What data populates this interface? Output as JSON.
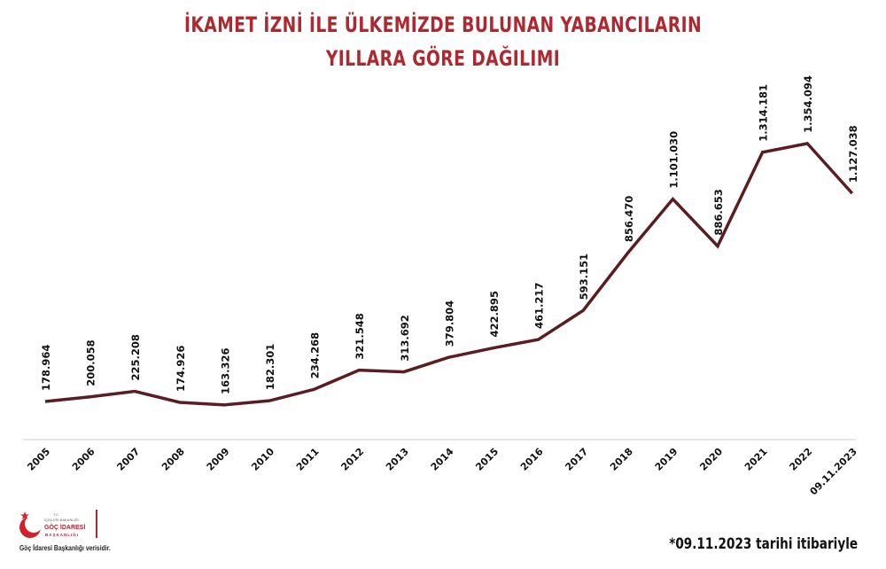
{
  "title": {
    "line1": "İKAMET İZNİ İLE ÜLKEMİZDE BULUNAN YABANCILARIN",
    "line2": "YILLARA GÖRE DAĞILIMI"
  },
  "colors": {
    "title": "#b0282f",
    "line": "#5a1e22",
    "axis": "#e6e6e6"
  },
  "footnote": "*09.11.2023 tarihi itibariyle",
  "logo": {
    "org_line1": "T.C.",
    "org_line2": "İÇİŞLERİ BAKANLIĞI",
    "org_line3": "GÖÇ İDARESİ",
    "org_line4": "BAŞKANLIĞI",
    "source": "Göç İdaresi Başkanlığı verisidir."
  },
  "chart_data": {
    "type": "line",
    "title": "İKAMET İZNİ İLE ÜLKEMİZDE BULUNAN YABANCILARIN YILLARA GÖRE DAĞILIMI",
    "xlabel": "",
    "ylabel": "",
    "grid": false,
    "legend": "none",
    "categories": [
      "2005",
      "2006",
      "2007",
      "2008",
      "2009",
      "2010",
      "2011",
      "2012",
      "2013",
      "2014",
      "2015",
      "2016",
      "2017",
      "2018",
      "2019",
      "2020",
      "2021",
      "2022",
      "09.11.2023"
    ],
    "values": [
      178964,
      200058,
      225208,
      174926,
      163326,
      182301,
      234268,
      321548,
      313692,
      379804,
      422895,
      461217,
      593151,
      856470,
      1101030,
      886653,
      1314181,
      1354094,
      1127038
    ],
    "labels": [
      "178.964",
      "200.058",
      "225.208",
      "174.926",
      "163.326",
      "182.301",
      "234.268",
      "321.548",
      "313.692",
      "379.804",
      "422.895",
      "461.217",
      "593.151",
      "856.470",
      "1.101.030",
      "886.653",
      "1.314.181",
      "1.354.094",
      "1.127.038"
    ],
    "ylim": [
      0,
      1400000
    ]
  }
}
